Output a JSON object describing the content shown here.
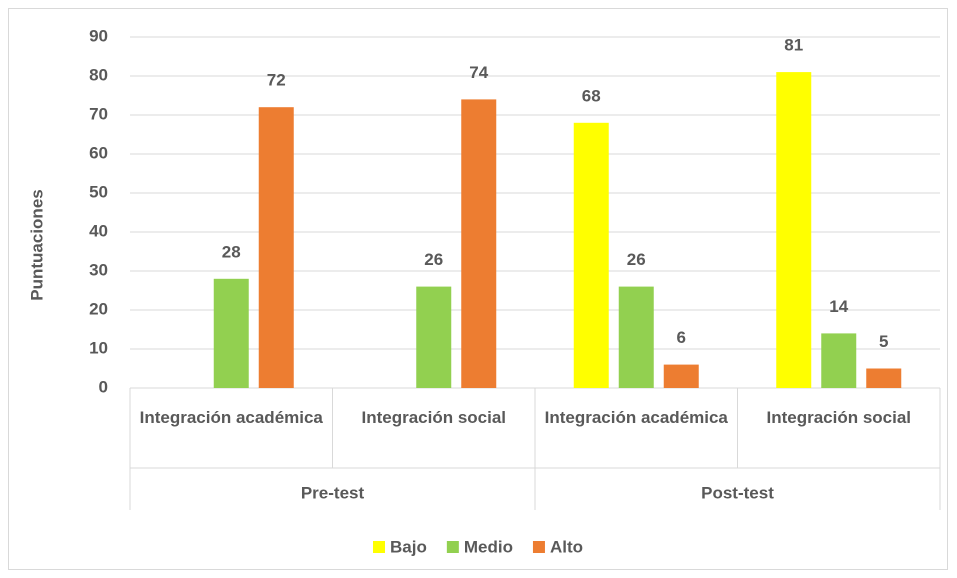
{
  "chart_data": {
    "type": "bar",
    "ylabel": "Puntuaciones",
    "groups": [
      {
        "name": "Pre-test",
        "categories": [
          "Integración académica",
          "Integración social"
        ]
      },
      {
        "name": "Post-test",
        "categories": [
          "Integración académica",
          "Integración social"
        ]
      }
    ],
    "series": [
      {
        "name": "Bajo",
        "color": "#ffff00",
        "values": [
          null,
          null,
          68,
          81
        ]
      },
      {
        "name": "Medio",
        "color": "#92d050",
        "values": [
          28,
          26,
          26,
          14
        ]
      },
      {
        "name": "Alto",
        "color": "#ed7d31",
        "values": [
          72,
          74,
          6,
          5
        ]
      }
    ],
    "ylim": [
      0,
      90
    ],
    "yticks": [
      0,
      10,
      20,
      30,
      40,
      50,
      60,
      70,
      80,
      90
    ],
    "grid": true,
    "legend": "bottom"
  }
}
